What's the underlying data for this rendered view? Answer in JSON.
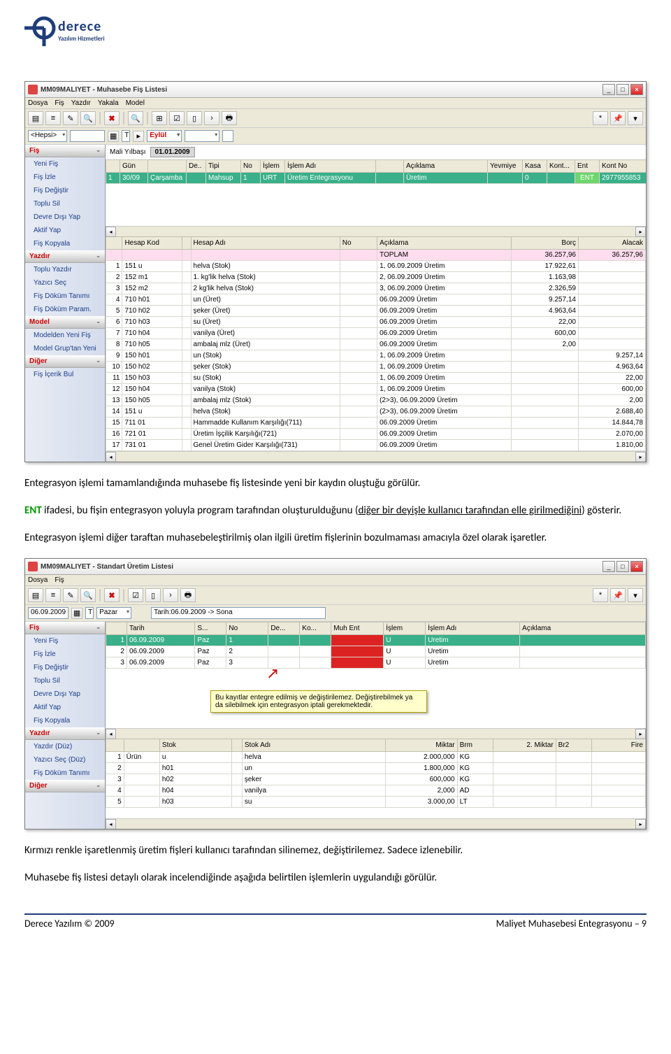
{
  "logo": {
    "name": "derece",
    "sub": "Yazılım Hizmetleri"
  },
  "win1": {
    "title": "MM09MALIYET - Muhasebe Fiş Listesi",
    "menu": [
      "Dosya",
      "Fiş",
      "Yazdır",
      "Yakala",
      "Model"
    ],
    "filter_hepsi": "<Hepsi>",
    "filter_month": "Eylül",
    "mali_label": "Mali Yılbaşı",
    "mali_val": "01.01.2009",
    "sidebar": [
      {
        "hdr": "Fiş",
        "items": [
          "Yeni Fiş",
          "Fiş İzle",
          "Fiş Değiştir",
          "Toplu Sil",
          "Devre Dışı Yap",
          "Aktif Yap",
          "Fiş Kopyala"
        ]
      },
      {
        "hdr": "Yazdır",
        "items": [
          "Toplu Yazdır",
          "Yazıcı Seç",
          "Fiş Döküm Tanımı",
          "Fiş Döküm Param."
        ]
      },
      {
        "hdr": "Model",
        "items": [
          "Modelden Yeni Fiş",
          "Model Grup'tan Yeni"
        ]
      },
      {
        "hdr": "Diğer",
        "items": [
          "Fiş İçerik Bul"
        ]
      }
    ],
    "top_cols": [
      "",
      "Gün",
      "",
      "De..",
      "Tipi",
      "No",
      "İşlem",
      "İşlem Adı",
      "",
      "Açıklama",
      "Yevmiye",
      "Kasa",
      "Kont...",
      "Ent",
      "Kont No"
    ],
    "top_row": [
      "1",
      "30/09",
      "Çarşamba",
      "",
      "Mahsup",
      "1",
      "URT",
      "Üretim Entegrasyonu",
      "",
      "Üretim",
      "",
      "0",
      "",
      "ENT",
      "2977955853"
    ],
    "det_cols": [
      "",
      "Hesap Kod",
      "",
      "Hesap Adı",
      "No",
      "Açıklama",
      "Borç",
      "Alacak"
    ],
    "toplam": [
      "",
      "",
      "",
      "",
      "",
      "TOPLAM",
      "36.257,96",
      "36.257,96"
    ],
    "rows": [
      [
        "1",
        "151 u",
        "",
        "helva (Stok)",
        "",
        "1, 06.09.2009 Üretim",
        "17.922,61",
        ""
      ],
      [
        "2",
        "152 m1",
        "",
        "1. kg'lik helva (Stok)",
        "",
        "2, 06.09.2009 Üretim",
        "1.163,98",
        ""
      ],
      [
        "3",
        "152 m2",
        "",
        "2 kg'lik helva (Stok)",
        "",
        "3, 06.09.2009 Üretim",
        "2.326,59",
        ""
      ],
      [
        "4",
        "710 h01",
        "",
        "un (Üret)",
        "",
        "06.09.2009 Üretim",
        "9.257,14",
        ""
      ],
      [
        "5",
        "710 h02",
        "",
        "şeker (Üret)",
        "",
        "06.09.2009 Üretim",
        "4.963,64",
        ""
      ],
      [
        "6",
        "710 h03",
        "",
        "su (Üret)",
        "",
        "06.09.2009 Üretim",
        "22,00",
        ""
      ],
      [
        "7",
        "710 h04",
        "",
        "vanilya (Üret)",
        "",
        "06.09.2009 Üretim",
        "600,00",
        ""
      ],
      [
        "8",
        "710 h05",
        "",
        "ambalaj mlz (Üret)",
        "",
        "06.09.2009 Üretim",
        "2,00",
        ""
      ],
      [
        "9",
        "150 h01",
        "",
        "un (Stok)",
        "",
        "1, 06.09.2009 Üretim",
        "",
        "9.257,14"
      ],
      [
        "10",
        "150 h02",
        "",
        "şeker (Stok)",
        "",
        "1, 06.09.2009 Üretim",
        "",
        "4.963,64"
      ],
      [
        "11",
        "150 h03",
        "",
        "su (Stok)",
        "",
        "1, 06.09.2009 Üretim",
        "",
        "22,00"
      ],
      [
        "12",
        "150 h04",
        "",
        "vanilya (Stok)",
        "",
        "1, 06.09.2009 Üretim",
        "",
        "600,00"
      ],
      [
        "13",
        "150 h05",
        "",
        "ambalaj mlz (Stok)",
        "",
        "(2>3), 06.09.2009 Üretim",
        "",
        "2,00"
      ],
      [
        "14",
        "151 u",
        "",
        "helva (Stok)",
        "",
        "(2>3), 06.09.2009 Üretim",
        "",
        "2.688,40"
      ],
      [
        "15",
        "711 01",
        "",
        "Hammadde Kullanım Karşılığı(711)",
        "",
        "06.09.2009 Üretim",
        "",
        "14.844,78"
      ],
      [
        "16",
        "721 01",
        "",
        "Üretim İşçilik Karşılığı(721)",
        "",
        "06.09.2009 Üretim",
        "",
        "2.070,00"
      ],
      [
        "17",
        "731 01",
        "",
        "Genel Üretim Gider Karşılığı(731)",
        "",
        "06.09.2009 Üretim",
        "",
        "1.810,00"
      ]
    ]
  },
  "para1": "Entegrasyon işlemi tamamlandığında muhasebe fiş listesinde yeni bir kaydın oluştuğu görülür.",
  "para2_a": "ENT",
  "para2_b": " ifadesi, bu fişin entegrasyon yoluyla program tarafından oluşturulduğunu (",
  "para2_c": "diğer bir deyişle kullanıcı tarafından elle girilmediğini",
  "para2_d": ") gösterir.",
  "para3": "Entegrasyon işlemi diğer taraftan muhasebeleştirilmiş olan ilgili üretim fişlerinin bozulmaması amacıyla özel olarak işaretler.",
  "win2": {
    "title": "MM09MALIYET - Standart Üretim Listesi",
    "menu": [
      "Dosya",
      "Fiş"
    ],
    "date": "06.09.2009",
    "day": "Pazar",
    "range": "Tarih:06.09.2009 -> Sona",
    "sidebar": [
      {
        "hdr": "Fiş",
        "items": [
          "Yeni Fiş",
          "Fiş İzle",
          "Fiş Değiştir",
          "Toplu Sil",
          "Devre Dışı Yap",
          "Aktif Yap",
          "Fiş Kopyala"
        ]
      },
      {
        "hdr": "Yazdır",
        "items": [
          "Yazdır (Düz)",
          "Yazıcı Seç (Düz)",
          "Fiş Döküm Tanımı"
        ]
      },
      {
        "hdr": "Diğer",
        "items": []
      }
    ],
    "top_cols": [
      "",
      "Tarih",
      "S...",
      "No",
      "De...",
      "Ko...",
      "Muh Ent",
      "İşlem",
      "İşlem Adı",
      "Açıklama"
    ],
    "top_rows": [
      [
        "1",
        "06.09.2009",
        "Paz",
        "1",
        "",
        "",
        "",
        "U",
        "Uretim",
        ""
      ],
      [
        "2",
        "06.09.2009",
        "Paz",
        "2",
        "",
        "",
        "",
        "U",
        "Uretim",
        ""
      ],
      [
        "3",
        "06.09.2009",
        "Paz",
        "3",
        "",
        "",
        "",
        "U",
        "Uretim",
        ""
      ]
    ],
    "tooltip": "Bu kayıtlar entegre edilmiş ve değiştirilemez. Değiştirebilmek ya da silebilmek için entegrasyon iptali gerekmektedir.",
    "det_cols": [
      "",
      "",
      "Stok",
      "",
      "Stok Adı",
      "Miktar",
      "Brm",
      "2. Miktar",
      "Br2",
      "Fire"
    ],
    "det_rows": [
      [
        "1",
        "Ürün",
        "u",
        "",
        "helva",
        "2.000,000",
        "KG",
        "",
        "",
        ""
      ],
      [
        "2",
        "",
        "h01",
        "",
        "un",
        "1.800,000",
        "KG",
        "",
        "",
        ""
      ],
      [
        "3",
        "",
        "h02",
        "",
        "şeker",
        "600,000",
        "KG",
        "",
        "",
        ""
      ],
      [
        "4",
        "",
        "h04",
        "",
        "vanilya",
        "2,000",
        "AD",
        "",
        "",
        ""
      ],
      [
        "5",
        "",
        "h03",
        "",
        "su",
        "3.000,00",
        "LT",
        "",
        "",
        ""
      ]
    ]
  },
  "para4": "Kırmızı renkle işaretlenmiş üretim fişleri kullanıcı tarafından silinemez, değiştirilemez. Sadece izlenebilir.",
  "para5": "Muhasebe fiş listesi detaylı olarak incelendiğinde aşağıda belirtilen işlemlerin uygulandığı görülür.",
  "footer_l": "Derece Yazılım © 2009",
  "footer_r": "Maliyet Muhasebesi Entegrasyonu – 9"
}
